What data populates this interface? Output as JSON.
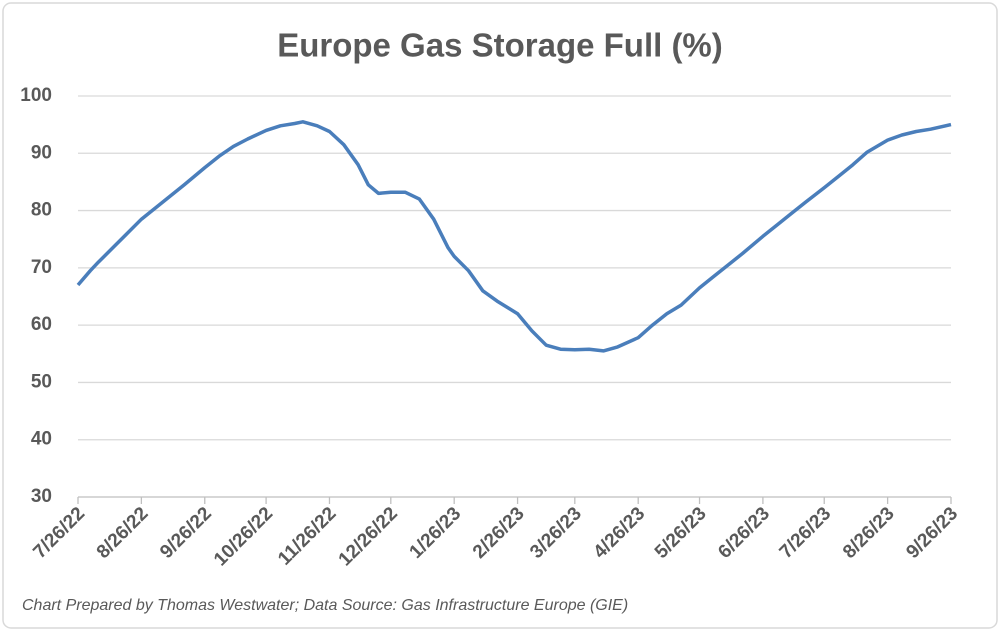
{
  "chart_data": {
    "type": "line",
    "title": "Europe Gas Storage Full (%)",
    "note": "Chart Prepared by Thomas Westwater; Data Source: Gas Infrastructure Europe (GIE)",
    "x": [
      "7/26/22",
      "8/1/22",
      "8/5/22",
      "8/12/22",
      "8/19/22",
      "8/26/22",
      "9/2/22",
      "9/9/22",
      "9/16/22",
      "9/26/22",
      "10/3/22",
      "10/10/22",
      "10/17/22",
      "10/26/22",
      "11/2/22",
      "11/9/22",
      "11/13/22",
      "11/20/22",
      "11/26/22",
      "12/3/22",
      "12/10/22",
      "12/15/22",
      "12/20/22",
      "12/26/22",
      "1/2/23",
      "1/9/23",
      "1/16/23",
      "1/23/23",
      "1/26/23",
      "2/2/23",
      "2/9/23",
      "2/16/23",
      "2/26/23",
      "3/5/23",
      "3/12/23",
      "3/19/23",
      "3/26/23",
      "4/2/23",
      "4/9/23",
      "4/16/23",
      "4/26/23",
      "5/3/23",
      "5/10/23",
      "5/17/23",
      "5/26/23",
      "6/2/23",
      "6/9/23",
      "6/16/23",
      "6/26/23",
      "7/3/23",
      "7/10/23",
      "7/17/23",
      "7/26/23",
      "8/2/23",
      "8/9/23",
      "8/16/23",
      "8/26/23",
      "9/2/23",
      "9/9/23",
      "9/16/23",
      "9/26/23"
    ],
    "series": [
      {
        "name": "Europe Gas Storage Full",
        "color": "#4a7ebb",
        "values": [
          67,
          69.5,
          71,
          73.5,
          76,
          78.5,
          80.5,
          82.5,
          84.5,
          87.5,
          89.5,
          91.2,
          92.5,
          94,
          94.8,
          95.2,
          95.5,
          94.8,
          93.8,
          91.5,
          88,
          84.5,
          83,
          83.2,
          83.2,
          82,
          78.5,
          73.5,
          72,
          69.5,
          66,
          64.2,
          62,
          59,
          56.5,
          55.8,
          55.7,
          55.8,
          55.5,
          56.2,
          57.8,
          60,
          62,
          63.5,
          66.5,
          68.5,
          70.5,
          72.5,
          75.5,
          77.5,
          79.5,
          81.5,
          84,
          86,
          88,
          90.2,
          92.3,
          93.2,
          93.8,
          94.2,
          95
        ]
      }
    ],
    "xlim": [
      "7/26/22",
      "9/26/23"
    ],
    "xticks": [
      "7/26/22",
      "8/26/22",
      "9/26/22",
      "10/26/22",
      "11/26/22",
      "12/26/22",
      "1/26/23",
      "2/26/23",
      "3/26/23",
      "4/26/23",
      "5/26/23",
      "6/26/23",
      "7/26/23",
      "8/26/23",
      "9/26/23"
    ],
    "ylim": [
      30,
      100
    ],
    "yticks": [
      30,
      40,
      50,
      60,
      70,
      80,
      90,
      100
    ],
    "grid": true
  }
}
